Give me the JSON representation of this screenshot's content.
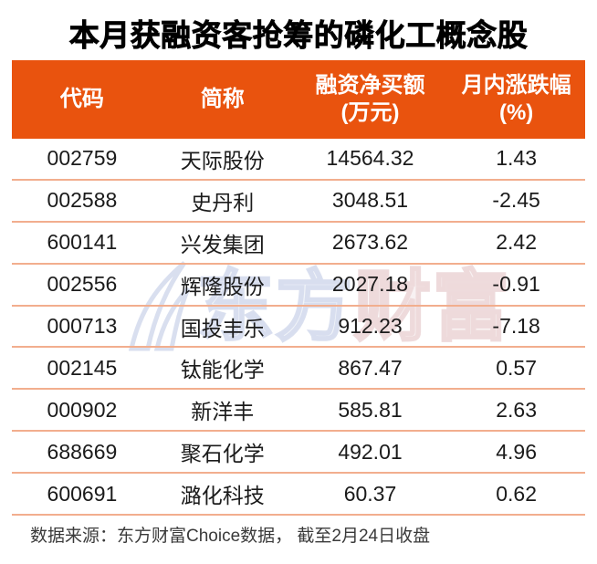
{
  "title": "本月获融资客抢筹的磷化工概念股",
  "chart_data": {
    "type": "table",
    "title": "本月获融资客抢筹的磷化工概念股",
    "columns": [
      {
        "label": "代码",
        "sub": ""
      },
      {
        "label": "简称",
        "sub": ""
      },
      {
        "label": "融资净买额",
        "sub": "(万元)"
      },
      {
        "label": "月内涨跌幅",
        "sub": "(%)"
      }
    ],
    "rows": [
      [
        "002759",
        "天际股份",
        "14564.32",
        "1.43"
      ],
      [
        "002588",
        "史丹利",
        "3048.51",
        "-2.45"
      ],
      [
        "600141",
        "兴发集团",
        "2673.62",
        "2.42"
      ],
      [
        "002556",
        "辉隆股份",
        "2027.18",
        "-0.91"
      ],
      [
        "000713",
        "国投丰乐",
        "912.23",
        "-7.18"
      ],
      [
        "002145",
        "钛能化学",
        "867.47",
        "0.57"
      ],
      [
        "000902",
        "新洋丰",
        "585.81",
        "2.63"
      ],
      [
        "688669",
        "聚石化学",
        "492.01",
        "4.96"
      ],
      [
        "600691",
        "潞化科技",
        "60.37",
        "0.62"
      ]
    ]
  },
  "footer": {
    "source_note": "数据来源：东方财富Choice数据， 截至2月24日收盘"
  },
  "watermark": {
    "text_left": "东方",
    "text_right": "财富"
  },
  "colors": {
    "accent_orange": "#E9530E",
    "row_divider": "#F2AE8E",
    "title_text": "#000000",
    "body_text": "#1B1B1B",
    "watermark_blue": "#D5DBED",
    "watermark_pink": "#ECD7D8"
  }
}
